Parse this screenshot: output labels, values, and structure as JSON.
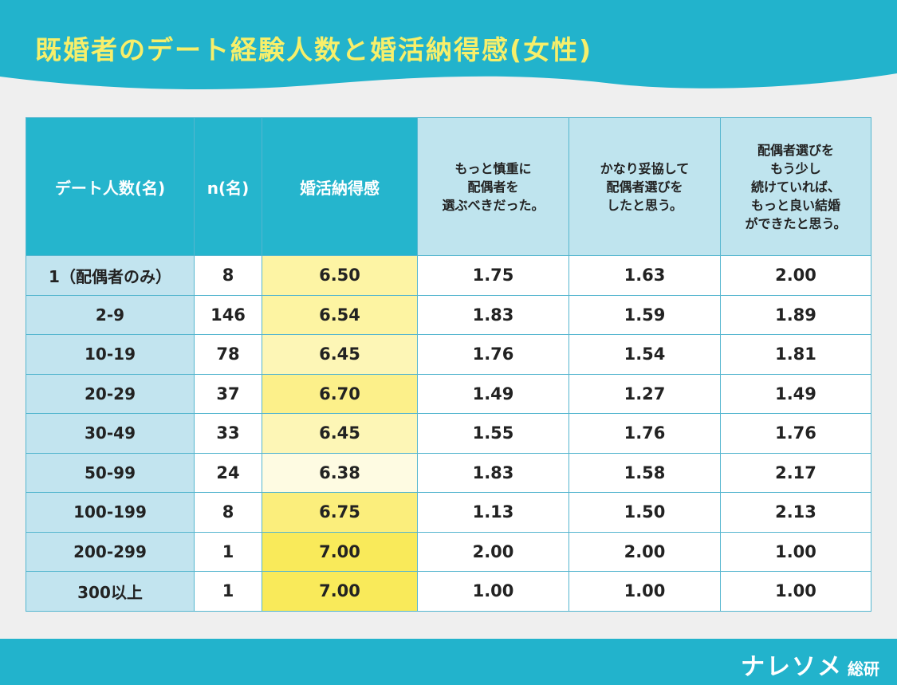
{
  "title": "既婚者のデート経験人数と婚活納得感(女性)",
  "columns": [
    "デート人数(名)",
    "n(名)",
    "婚活納得感",
    "もっと慎重に\n配偶者を\n選ぶべきだった。",
    "かなり妥協して\n配偶者選びを\nしたと思う。",
    "配偶者選びを\nもう少し\n続けていれば、\nもっと良い結婚\nができたと思う。"
  ],
  "rows": [
    {
      "label": "1（配偶者のみ）",
      "n": "8",
      "score": "6.50",
      "v1": "1.75",
      "v2": "1.63",
      "v3": "2.00",
      "score_color": "#fdf4a4"
    },
    {
      "label": "2-9",
      "n": "146",
      "score": "6.54",
      "v1": "1.83",
      "v2": "1.59",
      "v3": "1.89",
      "score_color": "#fdf4a2"
    },
    {
      "label": "10-19",
      "n": "78",
      "score": "6.45",
      "v1": "1.76",
      "v2": "1.54",
      "v3": "1.81",
      "score_color": "#fdf6b6"
    },
    {
      "label": "20-29",
      "n": "37",
      "score": "6.70",
      "v1": "1.49",
      "v2": "1.27",
      "v3": "1.49",
      "score_color": "#fcf08a"
    },
    {
      "label": "30-49",
      "n": "33",
      "score": "6.45",
      "v1": "1.55",
      "v2": "1.76",
      "v3": "1.76",
      "score_color": "#fdf6b6"
    },
    {
      "label": "50-99",
      "n": "24",
      "score": "6.38",
      "v1": "1.83",
      "v2": "1.58",
      "v3": "2.17",
      "score_color": "#fefbe2"
    },
    {
      "label": "100-199",
      "n": "8",
      "score": "6.75",
      "v1": "1.13",
      "v2": "1.50",
      "v3": "2.13",
      "score_color": "#fbee7c"
    },
    {
      "label": "200-299",
      "n": "1",
      "score": "7.00",
      "v1": "2.00",
      "v2": "2.00",
      "v3": "1.00",
      "score_color": "#f9ea5a"
    },
    {
      "label": "300以上",
      "n": "1",
      "score": "7.00",
      "v1": "1.00",
      "v2": "1.00",
      "v3": "1.00",
      "score_color": "#f9ea5a"
    }
  ],
  "logo": {
    "name": "ナレソメ",
    "suffix": "総研"
  },
  "colors": {
    "header": "#22b3cc",
    "title": "#f7ef6a",
    "dark_header": "#25b5cd",
    "light_header": "#bfe4ee"
  }
}
